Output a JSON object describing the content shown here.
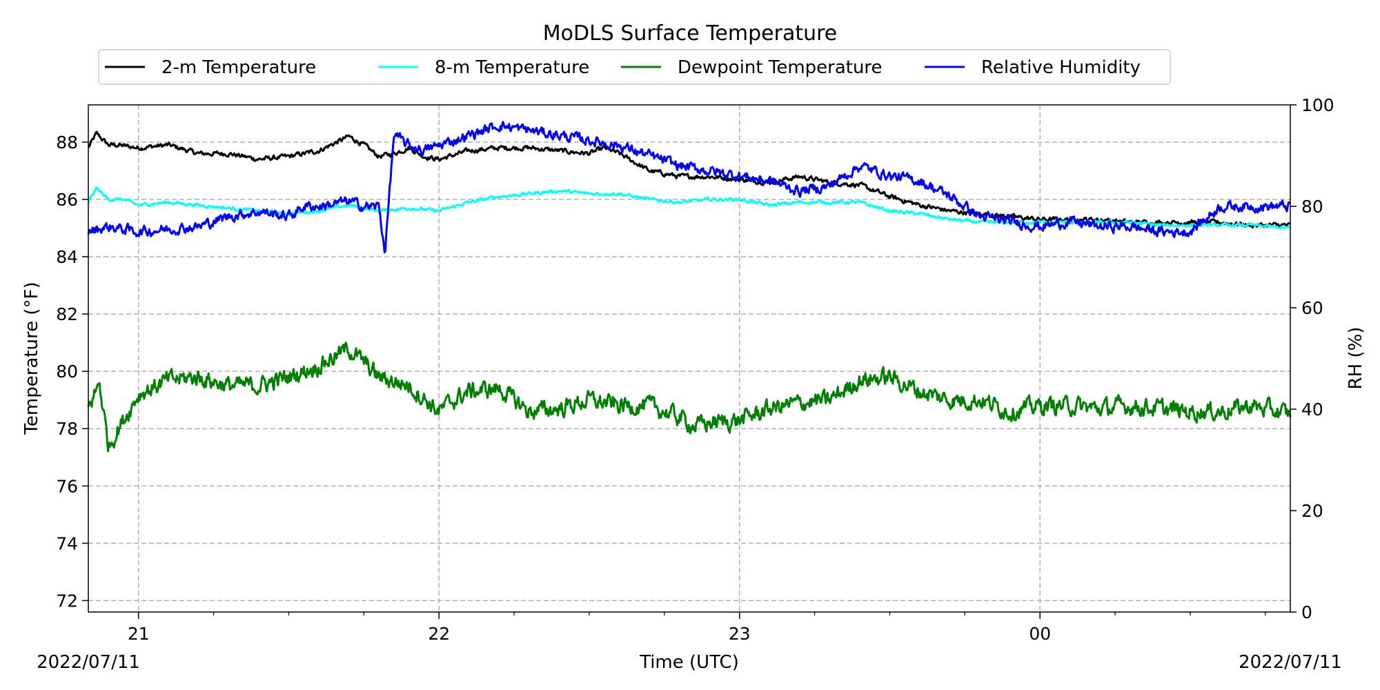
{
  "chart_data": {
    "type": "line",
    "title": "MoDLS Surface Temperature",
    "xlabel": "Time (UTC)",
    "ylabel": "Temperature ($^\\circ$F)",
    "ylabel_display": "Temperature (°F)",
    "y2label": "RH (%)",
    "x_start_label": "2022/07/11",
    "x_end_label": "2022/07/11",
    "xlim_hours": [
      20.833,
      24.833
    ],
    "x_ticks": [
      {
        "hour": 21,
        "label": "21"
      },
      {
        "hour": 22,
        "label": "22"
      },
      {
        "hour": 23,
        "label": "23"
      },
      {
        "hour": 24,
        "label": "00"
      }
    ],
    "ylim": [
      71.6,
      89.3
    ],
    "y_ticks": [
      72,
      74,
      76,
      78,
      80,
      82,
      84,
      86,
      88
    ],
    "y2lim": [
      0,
      100
    ],
    "y2_ticks": [
      0,
      20,
      40,
      60,
      80,
      100
    ],
    "grid": true,
    "legend_placement": "top-center",
    "series": [
      {
        "name": "2-m Temperature",
        "color": "#000000",
        "axis": "left",
        "noise": 0.15,
        "x": [
          20.833,
          20.86,
          20.9,
          20.93,
          21.0,
          21.1,
          21.2,
          21.3,
          21.4,
          21.5,
          21.6,
          21.7,
          21.75,
          21.8,
          21.85,
          21.9,
          21.95,
          22.0,
          22.1,
          22.2,
          22.3,
          22.4,
          22.5,
          22.55,
          22.6,
          22.65,
          22.7,
          22.8,
          22.9,
          23.0,
          23.1,
          23.2,
          23.3,
          23.4,
          23.5,
          23.6,
          23.7,
          23.8,
          23.9,
          24.0,
          24.1,
          24.2,
          24.3,
          24.4,
          24.5,
          24.6,
          24.7,
          24.833
        ],
        "y": [
          87.8,
          88.3,
          87.9,
          87.9,
          87.8,
          87.9,
          87.6,
          87.6,
          87.4,
          87.5,
          87.7,
          88.2,
          87.9,
          87.5,
          87.6,
          87.8,
          87.5,
          87.4,
          87.7,
          87.8,
          87.8,
          87.7,
          87.6,
          87.8,
          87.6,
          87.3,
          87.0,
          86.8,
          86.8,
          86.7,
          86.6,
          86.8,
          86.6,
          86.5,
          86.1,
          85.8,
          85.6,
          85.5,
          85.4,
          85.3,
          85.3,
          85.3,
          85.2,
          85.2,
          85.2,
          85.2,
          85.1,
          85.1
        ]
      },
      {
        "name": "8-m Temperature",
        "color": "#00ffff",
        "axis": "left",
        "noise": 0.1,
        "x": [
          20.833,
          20.86,
          20.9,
          20.95,
          21.0,
          21.1,
          21.2,
          21.3,
          21.4,
          21.5,
          21.6,
          21.7,
          21.8,
          21.9,
          22.0,
          22.1,
          22.2,
          22.3,
          22.4,
          22.5,
          22.6,
          22.7,
          22.8,
          22.9,
          23.0,
          23.1,
          23.2,
          23.3,
          23.4,
          23.5,
          23.6,
          23.7,
          23.8,
          23.9,
          24.0,
          24.1,
          24.2,
          24.3,
          24.4,
          24.5,
          24.6,
          24.7,
          24.833
        ],
        "y": [
          85.9,
          86.4,
          86.0,
          86.0,
          85.8,
          85.9,
          85.8,
          85.7,
          85.6,
          85.5,
          85.6,
          85.8,
          85.6,
          85.7,
          85.6,
          85.9,
          86.1,
          86.2,
          86.3,
          86.2,
          86.2,
          86.0,
          85.9,
          86.0,
          86.0,
          85.8,
          85.9,
          85.9,
          85.9,
          85.6,
          85.5,
          85.3,
          85.2,
          85.2,
          85.2,
          85.2,
          85.2,
          85.2,
          85.1,
          85.1,
          85.1,
          85.1,
          85.0
        ]
      },
      {
        "name": "Dewpoint Temperature",
        "color": "#008000",
        "axis": "left",
        "noise": 0.55,
        "x": [
          20.833,
          20.87,
          20.9,
          21.0,
          21.1,
          21.2,
          21.3,
          21.4,
          21.5,
          21.6,
          21.7,
          21.75,
          21.8,
          21.9,
          22.0,
          22.05,
          22.1,
          22.2,
          22.3,
          22.4,
          22.5,
          22.6,
          22.7,
          22.8,
          22.85,
          22.9,
          23.0,
          23.1,
          23.2,
          23.3,
          23.4,
          23.5,
          23.6,
          23.7,
          23.8,
          23.9,
          24.0,
          24.1,
          24.2,
          24.3,
          24.4,
          24.5,
          24.6,
          24.7,
          24.833
        ],
        "y": [
          78.7,
          79.6,
          77.4,
          79.2,
          79.7,
          79.8,
          79.5,
          79.5,
          79.8,
          80.2,
          80.8,
          80.3,
          79.8,
          79.5,
          78.6,
          79.0,
          79.3,
          79.4,
          78.6,
          78.7,
          79.0,
          78.8,
          78.8,
          78.4,
          78.1,
          78.2,
          78.3,
          78.7,
          78.9,
          79.0,
          79.7,
          79.8,
          79.3,
          79.0,
          79.0,
          78.6,
          78.8,
          78.8,
          78.7,
          78.8,
          78.7,
          78.6,
          78.6,
          78.8,
          78.5
        ]
      },
      {
        "name": "Relative Humidity",
        "color": "#0000ff",
        "axis": "right",
        "noise": 1.8,
        "x": [
          20.833,
          20.9,
          21.0,
          21.1,
          21.2,
          21.3,
          21.4,
          21.5,
          21.55,
          21.6,
          21.7,
          21.75,
          21.8,
          21.82,
          21.85,
          21.9,
          21.95,
          22.0,
          22.1,
          22.2,
          22.3,
          22.4,
          22.5,
          22.6,
          22.7,
          22.8,
          22.9,
          23.0,
          23.1,
          23.2,
          23.3,
          23.4,
          23.5,
          23.6,
          23.7,
          23.8,
          23.9,
          24.0,
          24.1,
          24.2,
          24.3,
          24.4,
          24.5,
          24.6,
          24.7,
          24.833
        ],
        "y": [
          75,
          76,
          75,
          75.5,
          76,
          78,
          79,
          78,
          80,
          80,
          81,
          80,
          80,
          71,
          94,
          92,
          91,
          92,
          94,
          96,
          95,
          94,
          93,
          92,
          90,
          88,
          87,
          86,
          85,
          83,
          84,
          88,
          86,
          85,
          82,
          78,
          77,
          76,
          77,
          76,
          76,
          75,
          75,
          80,
          80,
          80
        ]
      }
    ]
  }
}
